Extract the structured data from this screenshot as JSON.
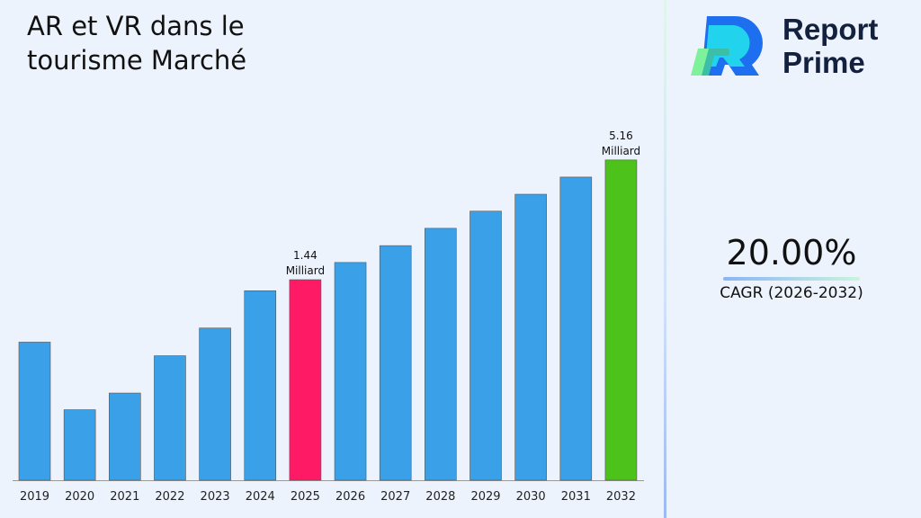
{
  "brand": {
    "line1": "Report",
    "line2": "Prime"
  },
  "cagr": {
    "value": "20.00%",
    "label": "CAGR (2026-2032)"
  },
  "colors": {
    "default_bar": "#3aa0e8",
    "highlight_2025": "#ff1a66",
    "highlight_2032": "#4cc21a"
  },
  "chart_data": {
    "type": "bar",
    "title": "AR et VR dans le tourisme Marché",
    "categories": [
      "2019",
      "2020",
      "2021",
      "2022",
      "2023",
      "2024",
      "2025",
      "2026",
      "2027",
      "2028",
      "2029",
      "2030",
      "2031",
      "2032"
    ],
    "values": [
      0.74,
      0.36,
      0.43,
      0.64,
      0.86,
      1.28,
      1.44,
      1.73,
      2.07,
      2.49,
      2.99,
      3.58,
      4.3,
      5.16
    ],
    "unit": "Milliard",
    "data_labels": [
      {
        "category": "2025",
        "value": "1.44",
        "unit": "Milliard"
      },
      {
        "category": "2032",
        "value": "5.16",
        "unit": "Milliard"
      }
    ],
    "grid": false,
    "legend": "none"
  }
}
